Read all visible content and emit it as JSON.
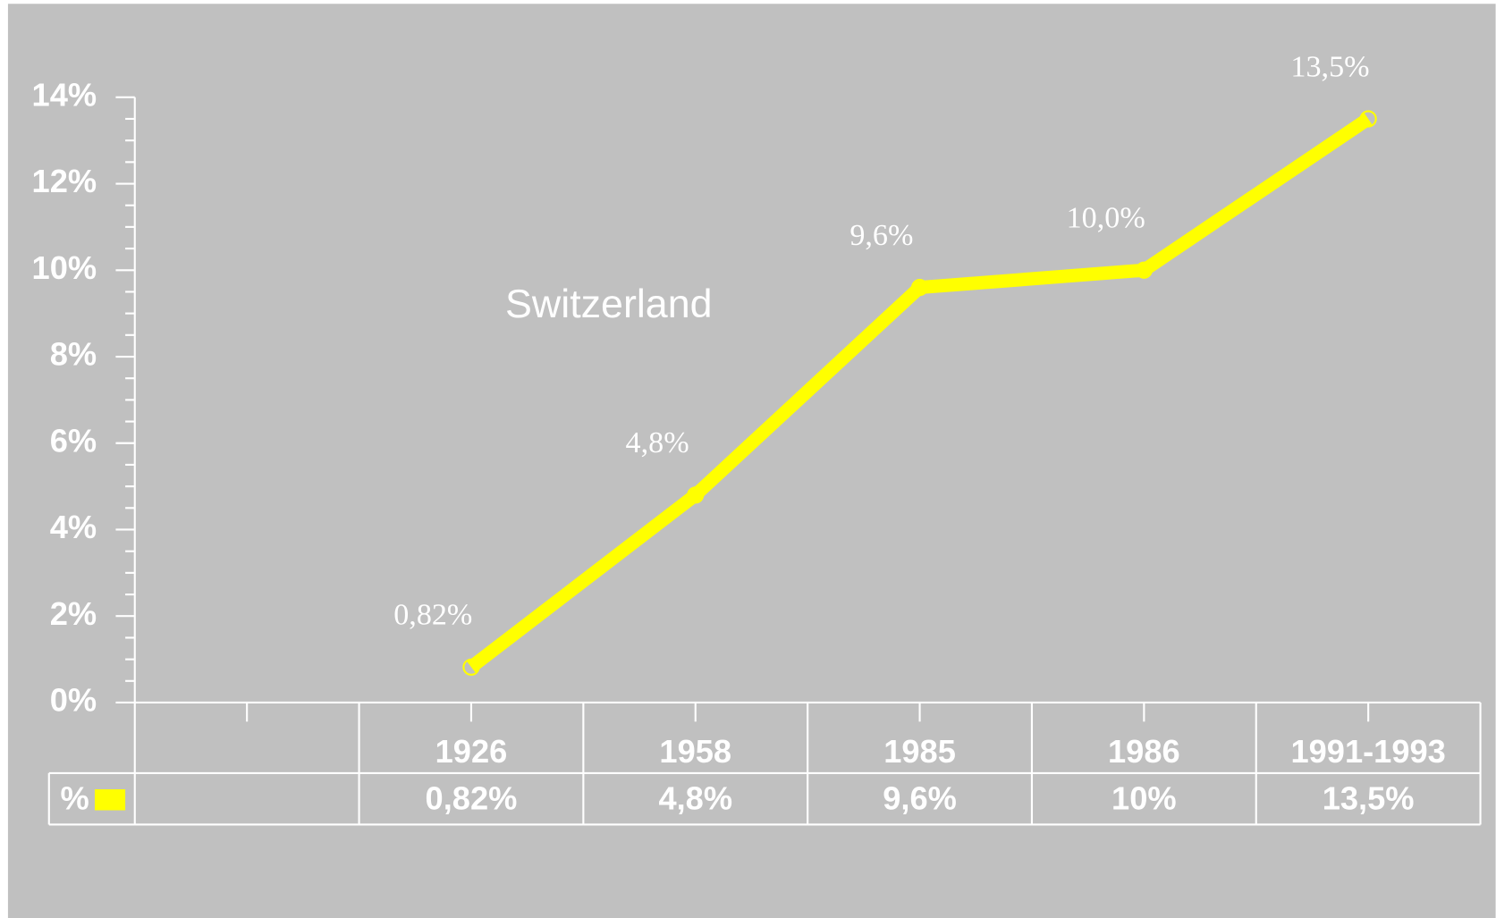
{
  "chart_data": {
    "type": "line",
    "title": "Switzerland",
    "categories": [
      null,
      "1926",
      "1958",
      "1985",
      "1986",
      "1991-1993"
    ],
    "series": [
      {
        "name": "%",
        "color": "#ffff00",
        "values": [
          null,
          0.82,
          4.8,
          9.6,
          10,
          13.5
        ],
        "value_labels": [
          null,
          "0,82%",
          "4,8%",
          "9,6%",
          "10,0%",
          "13,5%"
        ],
        "table_labels": [
          null,
          "0,82%",
          "4,8%",
          "9,6%",
          "10%",
          "13,5%"
        ]
      }
    ],
    "ylim": [
      0,
      14
    ],
    "yticks": [
      {
        "value": 0,
        "label": "0%"
      },
      {
        "value": 2,
        "label": "2%"
      },
      {
        "value": 4,
        "label": "4%"
      },
      {
        "value": 6,
        "label": "6%"
      },
      {
        "value": 8,
        "label": "8%"
      },
      {
        "value": 10,
        "label": "10%"
      },
      {
        "value": 12,
        "label": "12%"
      },
      {
        "value": 14,
        "label": "14%"
      }
    ],
    "yminorticks": [
      0.5,
      1,
      1.5,
      2.5,
      3,
      3.5,
      4.5,
      5,
      5.5,
      6.5,
      7,
      7.5,
      8.5,
      9,
      9.5,
      10.5,
      11,
      11.5,
      12.5,
      13,
      13.5
    ],
    "grid": false
  }
}
